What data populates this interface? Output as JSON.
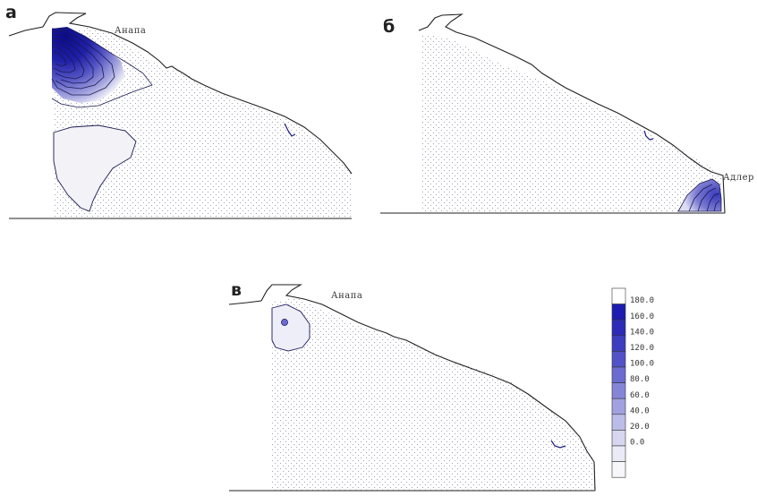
{
  "panels": [
    {
      "letter": "а",
      "place_label": "Анапа"
    },
    {
      "letter": "б",
      "place_label": "Адлер"
    },
    {
      "letter": "в",
      "place_label": "Анапа"
    }
  ],
  "legend": {
    "labels": [
      "180.0",
      "160.0",
      "140.0",
      "120.0",
      "100.0",
      "80.0",
      "60.0",
      "40.0",
      "20.0",
      "0.0"
    ],
    "colors": [
      "#ffffff",
      "#1c1cb0",
      "#2b2bb8",
      "#3d3dc0",
      "#5151c8",
      "#6b6bd0",
      "#8585d8",
      "#a1a1e0",
      "#bcbce8",
      "#d6d6f0",
      "#ebebf7",
      "#f7f7fb"
    ]
  }
}
